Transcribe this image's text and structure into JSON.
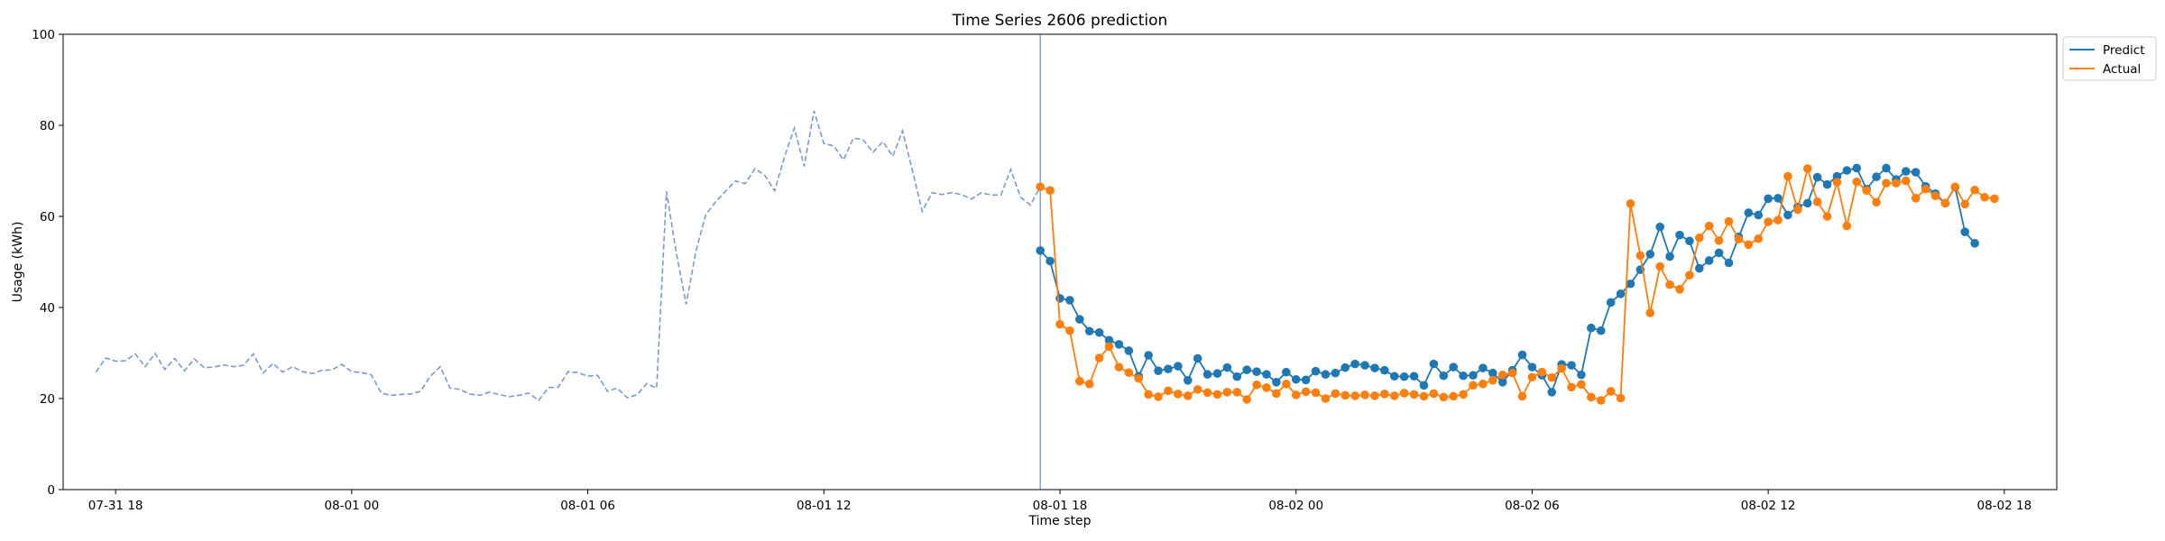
{
  "chart_data": {
    "type": "line",
    "title": "Time Series 2606 prediction",
    "xlabel": "Time step",
    "ylabel": "Usage (kWh)",
    "ylim": [
      0,
      100
    ],
    "yticks": [
      0,
      20,
      40,
      60,
      80,
      100
    ],
    "grid": false,
    "legend_position": "top-right, outside plot",
    "x_unit": "timestamp, 15-minute steps",
    "xlim": [
      "2024-07-31 16:40",
      "2024-08-02 19:20"
    ],
    "xticks": [
      {
        "label": "07-31 18",
        "t": "2024-07-31 18:00"
      },
      {
        "label": "08-01 00",
        "t": "2024-08-01 00:00"
      },
      {
        "label": "08-01 06",
        "t": "2024-08-01 06:00"
      },
      {
        "label": "08-01 12",
        "t": "2024-08-01 12:00"
      },
      {
        "label": "08-01 18",
        "t": "2024-08-01 18:00"
      },
      {
        "label": "08-02 00",
        "t": "2024-08-02 00:00"
      },
      {
        "label": "08-02 06",
        "t": "2024-08-02 06:00"
      },
      {
        "label": "08-02 12",
        "t": "2024-08-02 12:00"
      },
      {
        "label": "08-02 18",
        "t": "2024-08-02 18:00"
      }
    ],
    "forecast_start": "2024-08-01 17:30",
    "history": {
      "start": "2024-07-31 17:30",
      "step_minutes": 15,
      "color": "#7d9ac6",
      "style": "dashed",
      "values": [
        25.8,
        28.9,
        28.2,
        28.3,
        29.8,
        27.0,
        29.9,
        26.4,
        28.8,
        26.1,
        28.7,
        26.8,
        26.9,
        27.4,
        27.0,
        27.3,
        29.8,
        25.6,
        27.7,
        25.8,
        27.0,
        25.9,
        25.5,
        26.2,
        26.3,
        27.5,
        25.9,
        25.7,
        25.2,
        21.2,
        20.7,
        20.9,
        21.0,
        21.6,
        24.9,
        27.0,
        22.3,
        22.0,
        21.0,
        20.7,
        21.4,
        20.9,
        20.4,
        20.7,
        21.2,
        19.6,
        22.4,
        22.5,
        25.9,
        25.7,
        24.9,
        25.1,
        21.6,
        22.3,
        20.2,
        20.8,
        23.3,
        22.3,
        65.5,
        52.0,
        40.7,
        52.4,
        60.4,
        63.2,
        65.5,
        67.8,
        67.2,
        70.5,
        69.0,
        65.6,
        73.1,
        79.4,
        71.0,
        83.2,
        76.0,
        75.5,
        72.4,
        77.2,
        76.8,
        74.1,
        76.4,
        73.2,
        78.8,
        70.1,
        61.1,
        65.2,
        64.8,
        65.2,
        64.8,
        63.8,
        65.2,
        64.7,
        64.7,
        70.3,
        64.2,
        62.5,
        66.5
      ]
    },
    "series": [
      {
        "name": "Predict",
        "color": "#1f77b4",
        "start": "2024-08-01 17:30",
        "step_minutes": 15,
        "values": [
          52.5,
          50.2,
          42.0,
          41.6,
          37.4,
          34.8,
          34.5,
          32.8,
          31.9,
          30.5,
          24.9,
          29.5,
          26.1,
          26.5,
          27.1,
          24.0,
          28.8,
          25.3,
          25.5,
          26.8,
          24.8,
          26.3,
          25.9,
          25.3,
          23.6,
          25.8,
          24.2,
          24.1,
          26.0,
          25.3,
          25.6,
          26.8,
          27.6,
          27.3,
          26.7,
          26.2,
          24.9,
          24.8,
          24.9,
          22.9,
          27.6,
          25.0,
          26.9,
          25.0,
          25.1,
          26.7,
          25.6,
          23.6,
          26.2,
          29.6,
          26.9,
          25.1,
          21.4,
          27.5,
          27.3,
          25.2,
          35.5,
          34.9,
          41.1,
          43.0,
          45.2,
          48.3,
          51.7,
          57.7,
          51.2,
          55.9,
          54.6,
          48.6,
          50.3,
          52.0,
          49.8,
          55.5,
          60.8,
          60.3,
          63.9,
          64.0,
          60.3,
          62.1,
          62.9,
          68.6,
          67.0,
          68.8,
          70.1,
          70.6,
          66.0,
          68.7,
          70.6,
          68.1,
          69.9,
          69.7,
          66.6,
          65.0,
          62.9,
          66.4,
          56.6,
          54.1
        ]
      },
      {
        "name": "Actual",
        "color": "#ff7f0e",
        "start": "2024-08-01 17:30",
        "step_minutes": 15,
        "values": [
          66.5,
          65.7,
          36.3,
          34.9,
          23.8,
          23.2,
          28.9,
          31.4,
          26.9,
          25.7,
          24.4,
          20.9,
          20.4,
          21.7,
          21.0,
          20.6,
          22.0,
          21.3,
          20.9,
          21.4,
          21.4,
          19.8,
          23.0,
          22.4,
          21.1,
          23.2,
          20.8,
          21.5,
          21.3,
          20.0,
          21.1,
          20.7,
          20.6,
          20.8,
          20.6,
          21.0,
          20.6,
          21.2,
          20.9,
          20.5,
          21.1,
          20.3,
          20.5,
          20.9,
          22.9,
          23.2,
          24.0,
          25.2,
          25.6,
          20.5,
          24.7,
          25.8,
          24.6,
          26.6,
          22.5,
          23.1,
          20.3,
          19.6,
          21.6,
          20.1,
          62.8,
          51.4,
          38.8,
          49.0,
          45.0,
          44.0,
          47.1,
          55.3,
          57.9,
          54.7,
          58.9,
          55.0,
          53.8,
          55.1,
          58.8,
          59.2,
          68.8,
          61.5,
          70.5,
          63.2,
          60.0,
          67.5,
          57.9,
          67.6,
          65.7,
          63.1,
          67.3,
          67.3,
          67.8,
          64.0,
          66.0,
          64.5,
          62.9,
          66.5,
          62.7,
          65.8,
          64.2,
          63.9
        ]
      }
    ]
  }
}
